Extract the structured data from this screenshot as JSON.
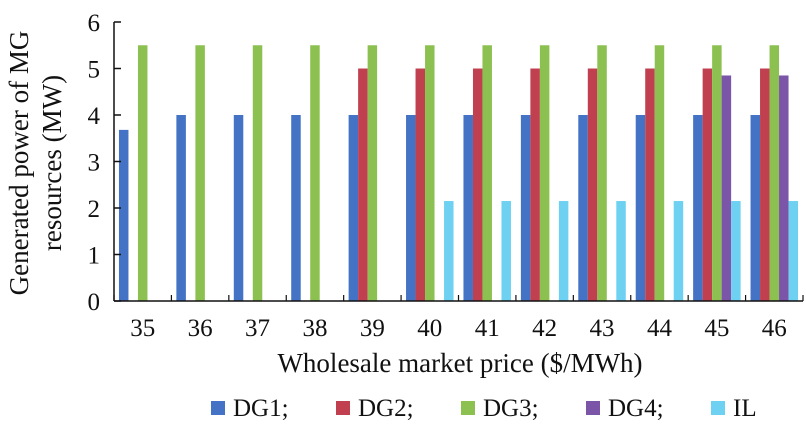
{
  "chart_data": {
    "type": "bar",
    "title": "",
    "xlabel": "Wholesale market price ($/MWh)",
    "ylabel_line1": "Generated power of MG",
    "ylabel_line2": "resources (MW)",
    "ylim": [
      0,
      6
    ],
    "yticks": [
      0,
      1,
      2,
      3,
      4,
      5,
      6
    ],
    "categories": [
      "35",
      "36",
      "37",
      "38",
      "39",
      "40",
      "41",
      "42",
      "43",
      "44",
      "45",
      "46"
    ],
    "legend_position": "bottom",
    "grid": false,
    "series": [
      {
        "name": "DG1;",
        "color": "#4472c4",
        "values": [
          3.68,
          4,
          4,
          4,
          4,
          4,
          4,
          4,
          4,
          4,
          4,
          4
        ]
      },
      {
        "name": "DG2;",
        "color": "#c0404f",
        "values": [
          0,
          0,
          0,
          0,
          5,
          5,
          5,
          5,
          5,
          5,
          5,
          5
        ]
      },
      {
        "name": "DG3;",
        "color": "#8cc152",
        "values": [
          5.5,
          5.5,
          5.5,
          5.5,
          5.5,
          5.5,
          5.5,
          5.5,
          5.5,
          5.5,
          5.5,
          5.5
        ]
      },
      {
        "name": "DG4;",
        "color": "#7a55a8",
        "values": [
          0,
          0,
          0,
          0,
          0,
          0,
          0,
          0,
          0,
          0,
          4.85,
          4.85
        ]
      },
      {
        "name": "IL",
        "color": "#6fd1f1",
        "values": [
          0,
          0,
          0,
          0,
          0,
          2.15,
          2.15,
          2.15,
          2.15,
          2.15,
          2.15,
          2.15
        ]
      }
    ]
  }
}
